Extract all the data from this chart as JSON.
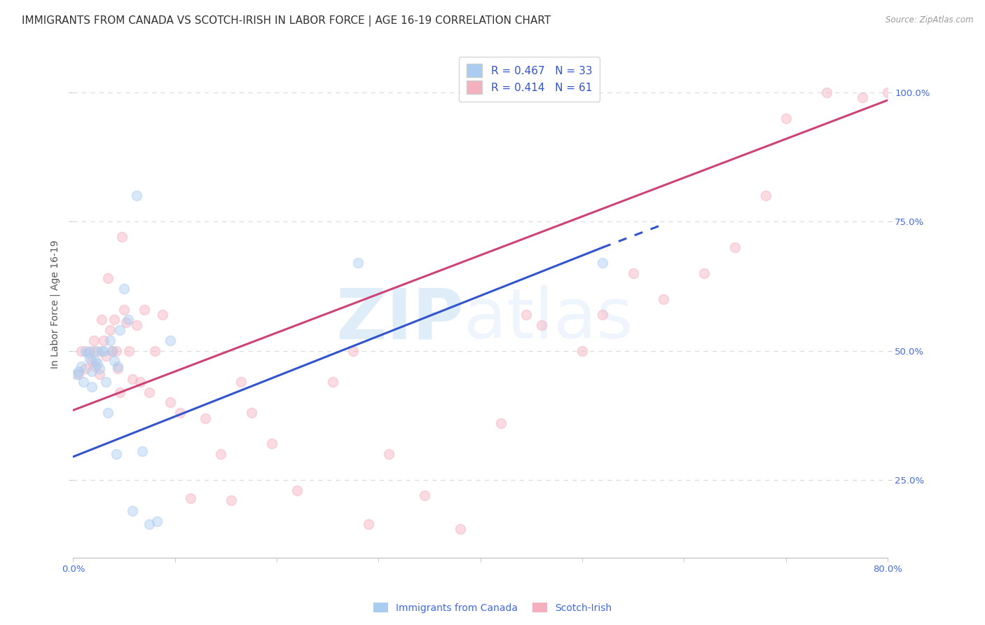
{
  "title": "IMMIGRANTS FROM CANADA VS SCOTCH-IRISH IN LABOR FORCE | AGE 16-19 CORRELATION CHART",
  "source": "Source: ZipAtlas.com",
  "ylabel": "In Labor Force | Age 16-19",
  "xlim": [
    0.0,
    0.8
  ],
  "ylim": [
    0.1,
    1.08
  ],
  "xtick_positions": [
    0.0,
    0.1,
    0.2,
    0.3,
    0.4,
    0.5,
    0.6,
    0.7,
    0.8
  ],
  "xticklabels": [
    "0.0%",
    "",
    "",
    "",
    "",
    "",
    "",
    "",
    "80.0%"
  ],
  "ytick_right_positions": [
    0.25,
    0.5,
    0.75,
    1.0
  ],
  "yticklabels_right": [
    "25.0%",
    "50.0%",
    "75.0%",
    "100.0%"
  ],
  "legend_label_canada": "Immigrants from Canada",
  "legend_label_scotch": "Scotch-Irish",
  "canada_color": "#aaccf0",
  "scotch_color": "#f5b0c0",
  "canada_line_color": "#3355cc",
  "scotch_line_color": "#cc4477",
  "watermark_zip": "ZIP",
  "watermark_atlas": "atlas",
  "canada_line_x0": 0.0,
  "canada_line_y0": 0.295,
  "canada_line_x1": 0.52,
  "canada_line_y1": 0.7,
  "canada_line_dash_x1": 0.58,
  "canada_line_dash_y1": 0.745,
  "scotch_line_x0": 0.0,
  "scotch_line_y0": 0.385,
  "scotch_line_x1": 0.8,
  "scotch_line_y1": 0.985,
  "canada_x": [
    0.003,
    0.005,
    0.008,
    0.01,
    0.012,
    0.014,
    0.016,
    0.018,
    0.018,
    0.02,
    0.022,
    0.024,
    0.026,
    0.028,
    0.03,
    0.032,
    0.034,
    0.036,
    0.038,
    0.04,
    0.042,
    0.044,
    0.046,
    0.05,
    0.054,
    0.058,
    0.062,
    0.068,
    0.075,
    0.082,
    0.095,
    0.28,
    0.52
  ],
  "canada_y": [
    0.455,
    0.46,
    0.47,
    0.44,
    0.5,
    0.495,
    0.485,
    0.46,
    0.43,
    0.5,
    0.48,
    0.475,
    0.465,
    0.5,
    0.5,
    0.44,
    0.38,
    0.52,
    0.5,
    0.48,
    0.3,
    0.47,
    0.54,
    0.62,
    0.56,
    0.19,
    0.8,
    0.305,
    0.165,
    0.17,
    0.52,
    0.67,
    0.67
  ],
  "scotch_x": [
    0.005,
    0.008,
    0.012,
    0.016,
    0.018,
    0.02,
    0.022,
    0.024,
    0.026,
    0.028,
    0.03,
    0.032,
    0.034,
    0.036,
    0.038,
    0.04,
    0.042,
    0.044,
    0.046,
    0.048,
    0.05,
    0.052,
    0.055,
    0.058,
    0.062,
    0.066,
    0.07,
    0.075,
    0.08,
    0.088,
    0.095,
    0.105,
    0.115,
    0.13,
    0.145,
    0.155,
    0.165,
    0.175,
    0.195,
    0.22,
    0.255,
    0.275,
    0.29,
    0.31,
    0.345,
    0.38,
    0.42,
    0.445,
    0.46,
    0.5,
    0.52,
    0.55,
    0.58,
    0.62,
    0.65,
    0.68,
    0.7,
    0.74,
    0.775,
    0.8
  ],
  "scotch_y": [
    0.455,
    0.5,
    0.465,
    0.5,
    0.48,
    0.52,
    0.47,
    0.5,
    0.455,
    0.56,
    0.52,
    0.49,
    0.64,
    0.54,
    0.5,
    0.56,
    0.5,
    0.465,
    0.42,
    0.72,
    0.58,
    0.555,
    0.5,
    0.445,
    0.55,
    0.44,
    0.58,
    0.42,
    0.5,
    0.57,
    0.4,
    0.38,
    0.215,
    0.37,
    0.3,
    0.21,
    0.44,
    0.38,
    0.32,
    0.23,
    0.44,
    0.5,
    0.165,
    0.3,
    0.22,
    0.155,
    0.36,
    0.57,
    0.55,
    0.5,
    0.57,
    0.65,
    0.6,
    0.65,
    0.7,
    0.8,
    0.95,
    1.0,
    0.99,
    1.0
  ],
  "grid_color": "#dddddd",
  "background_color": "#ffffff",
  "title_fontsize": 11,
  "axis_tick_fontsize": 9.5,
  "label_fontsize": 10,
  "marker_size": 100,
  "marker_alpha": 0.45,
  "tick_color": "#4169e1"
}
